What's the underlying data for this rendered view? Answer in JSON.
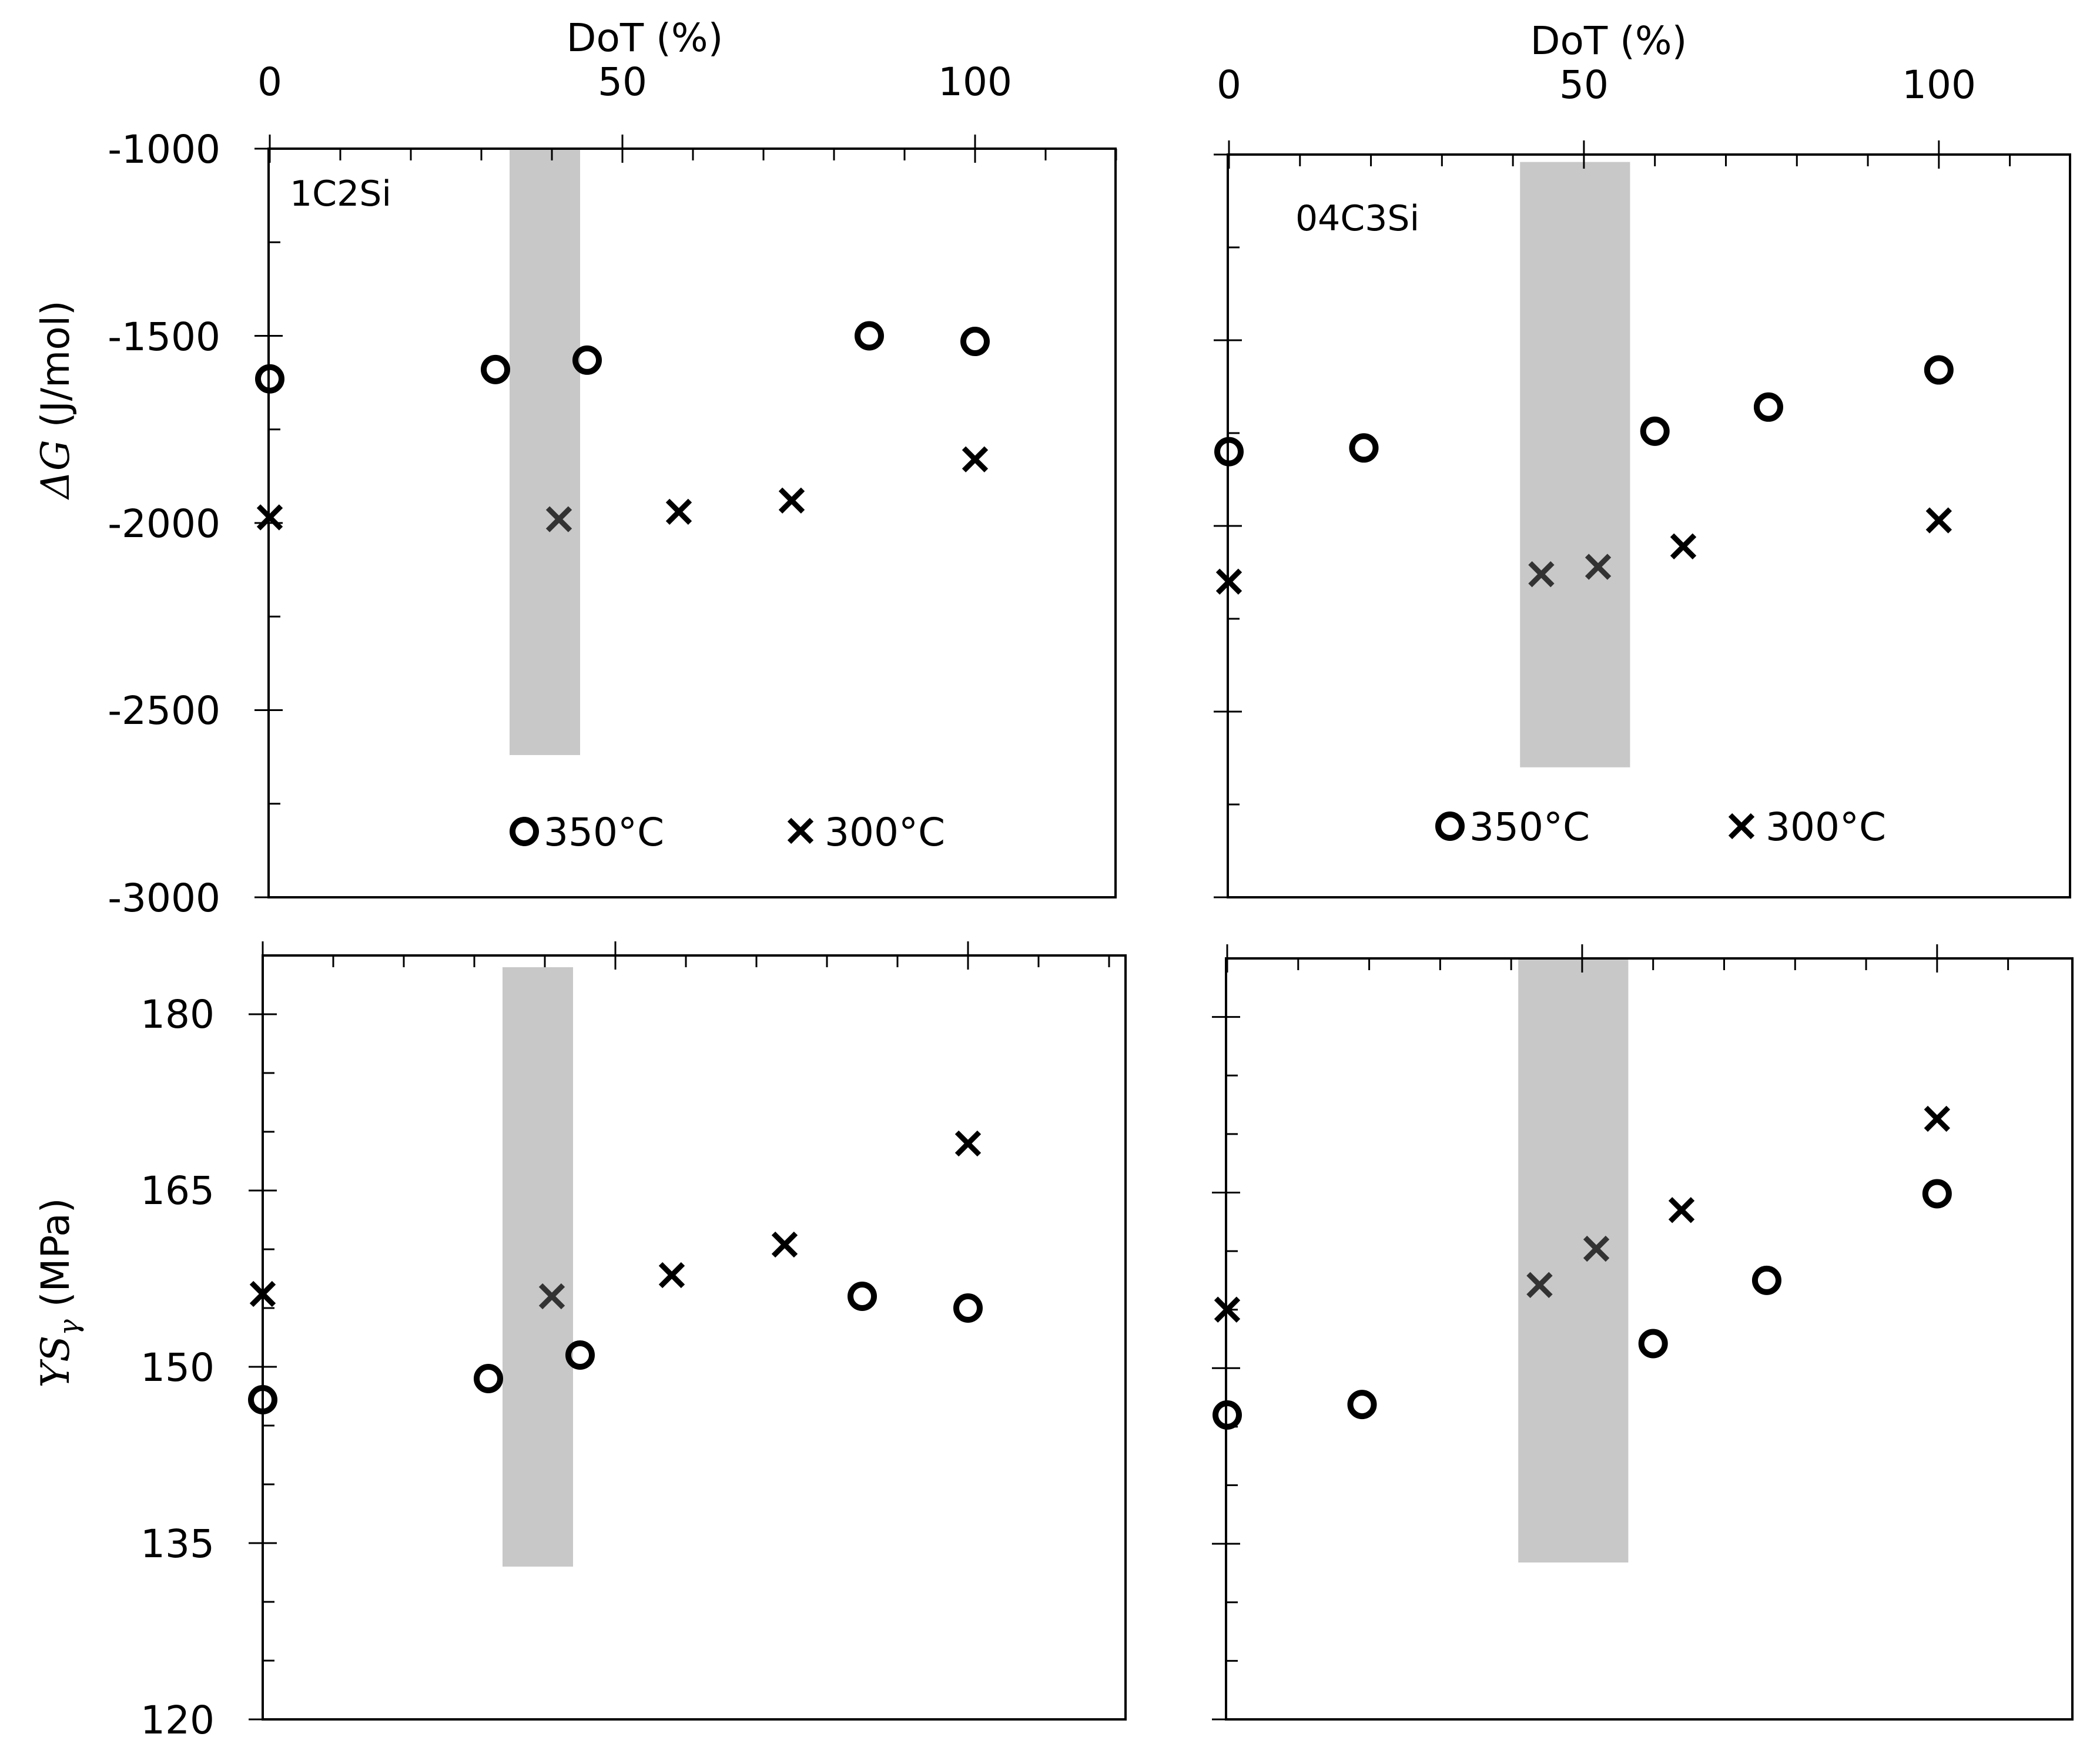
{
  "colors": {
    "band": "#c8c8c8",
    "marker": "#000000",
    "marker_in_band": "#333333",
    "frame": "#000000"
  },
  "chart_data": [
    {
      "id": "top-left",
      "type": "scatter",
      "panel_label": "1C2Si",
      "xlabel": "DoT (%)",
      "ylabel_symbol": "ΔG",
      "ylabel_units": "(J/mol)",
      "x_ticklabels": [
        "0",
        "50",
        "100"
      ],
      "y_ticklabels": [
        "-1000",
        "-1500",
        "-2000",
        "-2500",
        "-3000"
      ],
      "xlim": [
        0,
        120
      ],
      "ylim": [
        -3000,
        -1000
      ],
      "band_x": [
        34,
        44
      ],
      "band_y": [
        -2620,
        -1000
      ],
      "legend": [
        "350°C",
        "300°C"
      ],
      "series": [
        {
          "name": "350°C",
          "marker": "circle",
          "x": [
            0,
            32,
            45,
            85,
            100
          ],
          "y": [
            -1615,
            -1590,
            -1565,
            -1500,
            -1515
          ]
        },
        {
          "name": "300°C",
          "marker": "cross",
          "x": [
            0,
            41,
            58,
            74,
            100
          ],
          "y": [
            -1985,
            -1990,
            -1970,
            -1940,
            -1830
          ]
        }
      ]
    },
    {
      "id": "top-right",
      "type": "scatter",
      "panel_label": "04C3Si",
      "xlabel": "DoT (%)",
      "x_ticklabels": [
        "0",
        "50",
        "100"
      ],
      "xlim": [
        0,
        115
      ],
      "ylim": [
        -3000,
        -1000
      ],
      "band_x": [
        41,
        56.5
      ],
      "band_y": [
        -2650,
        -1020
      ],
      "legend": [
        "350°C",
        "300°C"
      ],
      "series": [
        {
          "name": "350°C",
          "marker": "circle",
          "x": [
            0,
            19,
            60,
            76,
            100
          ],
          "y": [
            -1800,
            -1790,
            -1745,
            -1680,
            -1580
          ]
        },
        {
          "name": "300°C",
          "marker": "cross",
          "x": [
            0,
            44,
            52,
            64,
            100
          ],
          "y": [
            -2150,
            -2130,
            -2110,
            -2055,
            -1985
          ]
        }
      ]
    },
    {
      "id": "bottom-left",
      "type": "scatter",
      "ylabel_symbol": "YS",
      "ylabel_subscript": "γ",
      "ylabel_units": "(MPa)",
      "y_ticklabels": [
        "180",
        "165",
        "150",
        "135",
        "120"
      ],
      "xlim": [
        0,
        120
      ],
      "ylim": [
        120,
        185
      ],
      "band_x": [
        34,
        44
      ],
      "band_y": [
        133,
        184
      ],
      "series": [
        {
          "name": "350°C",
          "marker": "circle",
          "x": [
            0,
            32,
            45,
            85,
            100
          ],
          "y": [
            147.2,
            149,
            151,
            156,
            155
          ]
        },
        {
          "name": "300°C",
          "marker": "cross",
          "x": [
            0,
            41,
            58,
            74,
            100
          ],
          "y": [
            156.2,
            156,
            157.8,
            160.4,
            169
          ]
        }
      ]
    },
    {
      "id": "bottom-right",
      "type": "scatter",
      "xlim": [
        0,
        115
      ],
      "ylim": [
        120,
        185
      ],
      "band_x": [
        41,
        56.5
      ],
      "band_y": [
        133.4,
        185
      ],
      "series": [
        {
          "name": "350°C",
          "marker": "circle",
          "x": [
            0,
            19,
            60,
            76,
            100
          ],
          "y": [
            146,
            146.9,
            152.1,
            157.5,
            164.9
          ]
        },
        {
          "name": "300°C",
          "marker": "cross",
          "x": [
            0,
            44,
            52,
            64,
            100
          ],
          "y": [
            155,
            157.1,
            160.2,
            163.5,
            171.3
          ]
        }
      ]
    }
  ]
}
